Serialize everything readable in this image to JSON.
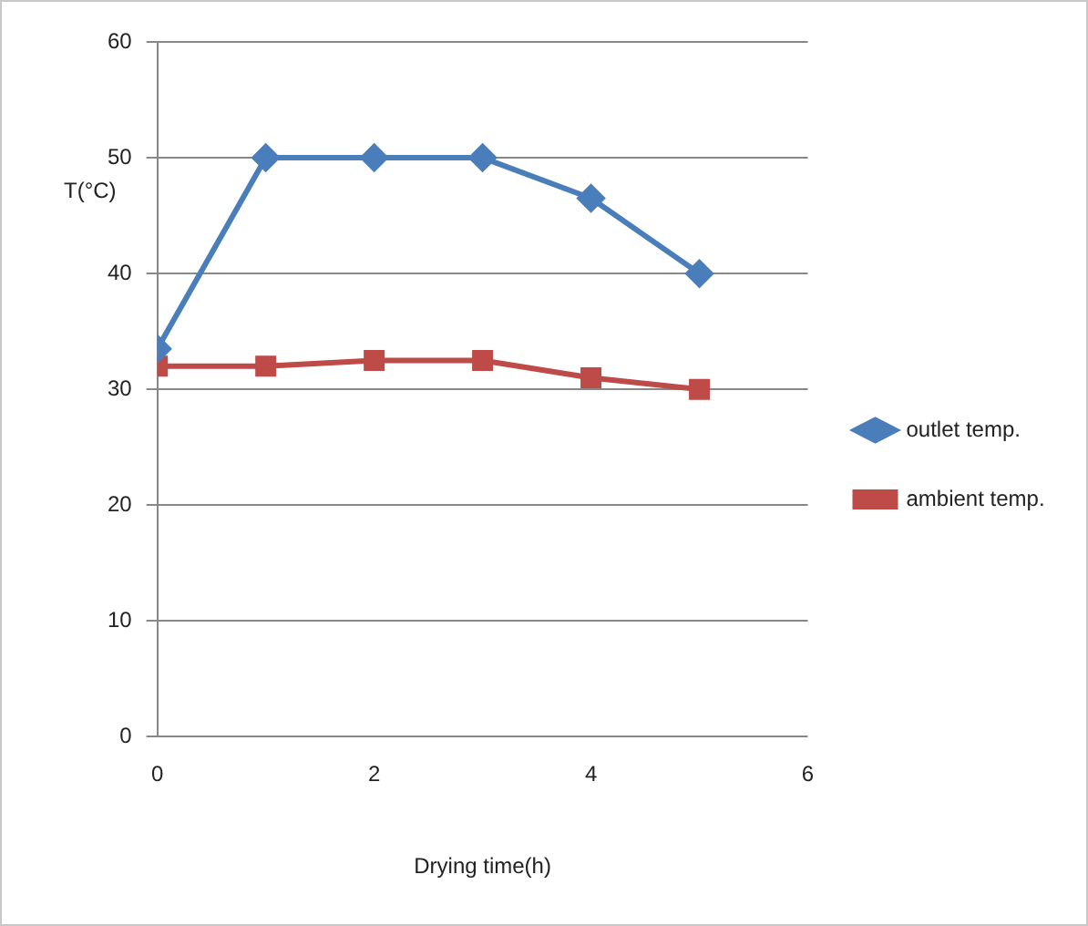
{
  "chart_data": {
    "type": "line",
    "xlabel": "Drying time(h)",
    "ylabel": "T(°C)",
    "x": [
      0,
      1,
      2,
      3,
      4,
      5
    ],
    "xlim": [
      0,
      6
    ],
    "xticks": [
      0,
      2,
      4,
      6
    ],
    "ylim": [
      0,
      60
    ],
    "yticks": [
      0,
      10,
      20,
      30,
      40,
      50,
      60
    ],
    "grid": "y",
    "legend": "right",
    "series": [
      {
        "name": "outlet temp.",
        "color": "#4a7ebb",
        "marker": "diamond",
        "values": [
          33.5,
          50,
          50,
          50,
          46.5,
          40
        ]
      },
      {
        "name": "ambient temp.",
        "color": "#be4b48",
        "marker": "square",
        "values": [
          32,
          32,
          32.5,
          32.5,
          31,
          30
        ]
      }
    ]
  }
}
